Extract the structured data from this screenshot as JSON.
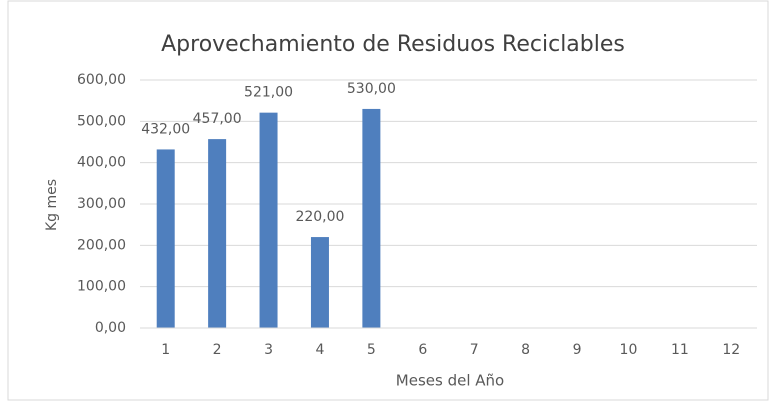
{
  "chart_data": {
    "type": "bar",
    "title": "Aprovechamiento de Residuos Reciclables",
    "x_label": "Meses del Año",
    "y_label": "Kg mes",
    "categories": [
      "1",
      "2",
      "3",
      "4",
      "5",
      "6",
      "7",
      "8",
      "9",
      "10",
      "11",
      "12"
    ],
    "values": [
      432,
      457,
      521,
      220,
      530,
      null,
      null,
      null,
      null,
      null,
      null,
      null
    ],
    "value_labels": [
      "432,00",
      "457,00",
      "521,00",
      "220,00",
      "530,00",
      null,
      null,
      null,
      null,
      null,
      null,
      null
    ],
    "color": "#4f7fbe",
    "ylim": [
      0,
      600
    ],
    "yticks": [
      {
        "value": 0,
        "label": "0,00"
      },
      {
        "value": 100,
        "label": "100,00"
      },
      {
        "value": 200,
        "label": "200,00"
      },
      {
        "value": 300,
        "label": "300,00"
      },
      {
        "value": 400,
        "label": "400,00"
      },
      {
        "value": 500,
        "label": "500,00"
      },
      {
        "value": 600,
        "label": "600,00"
      }
    ],
    "grid": true
  }
}
